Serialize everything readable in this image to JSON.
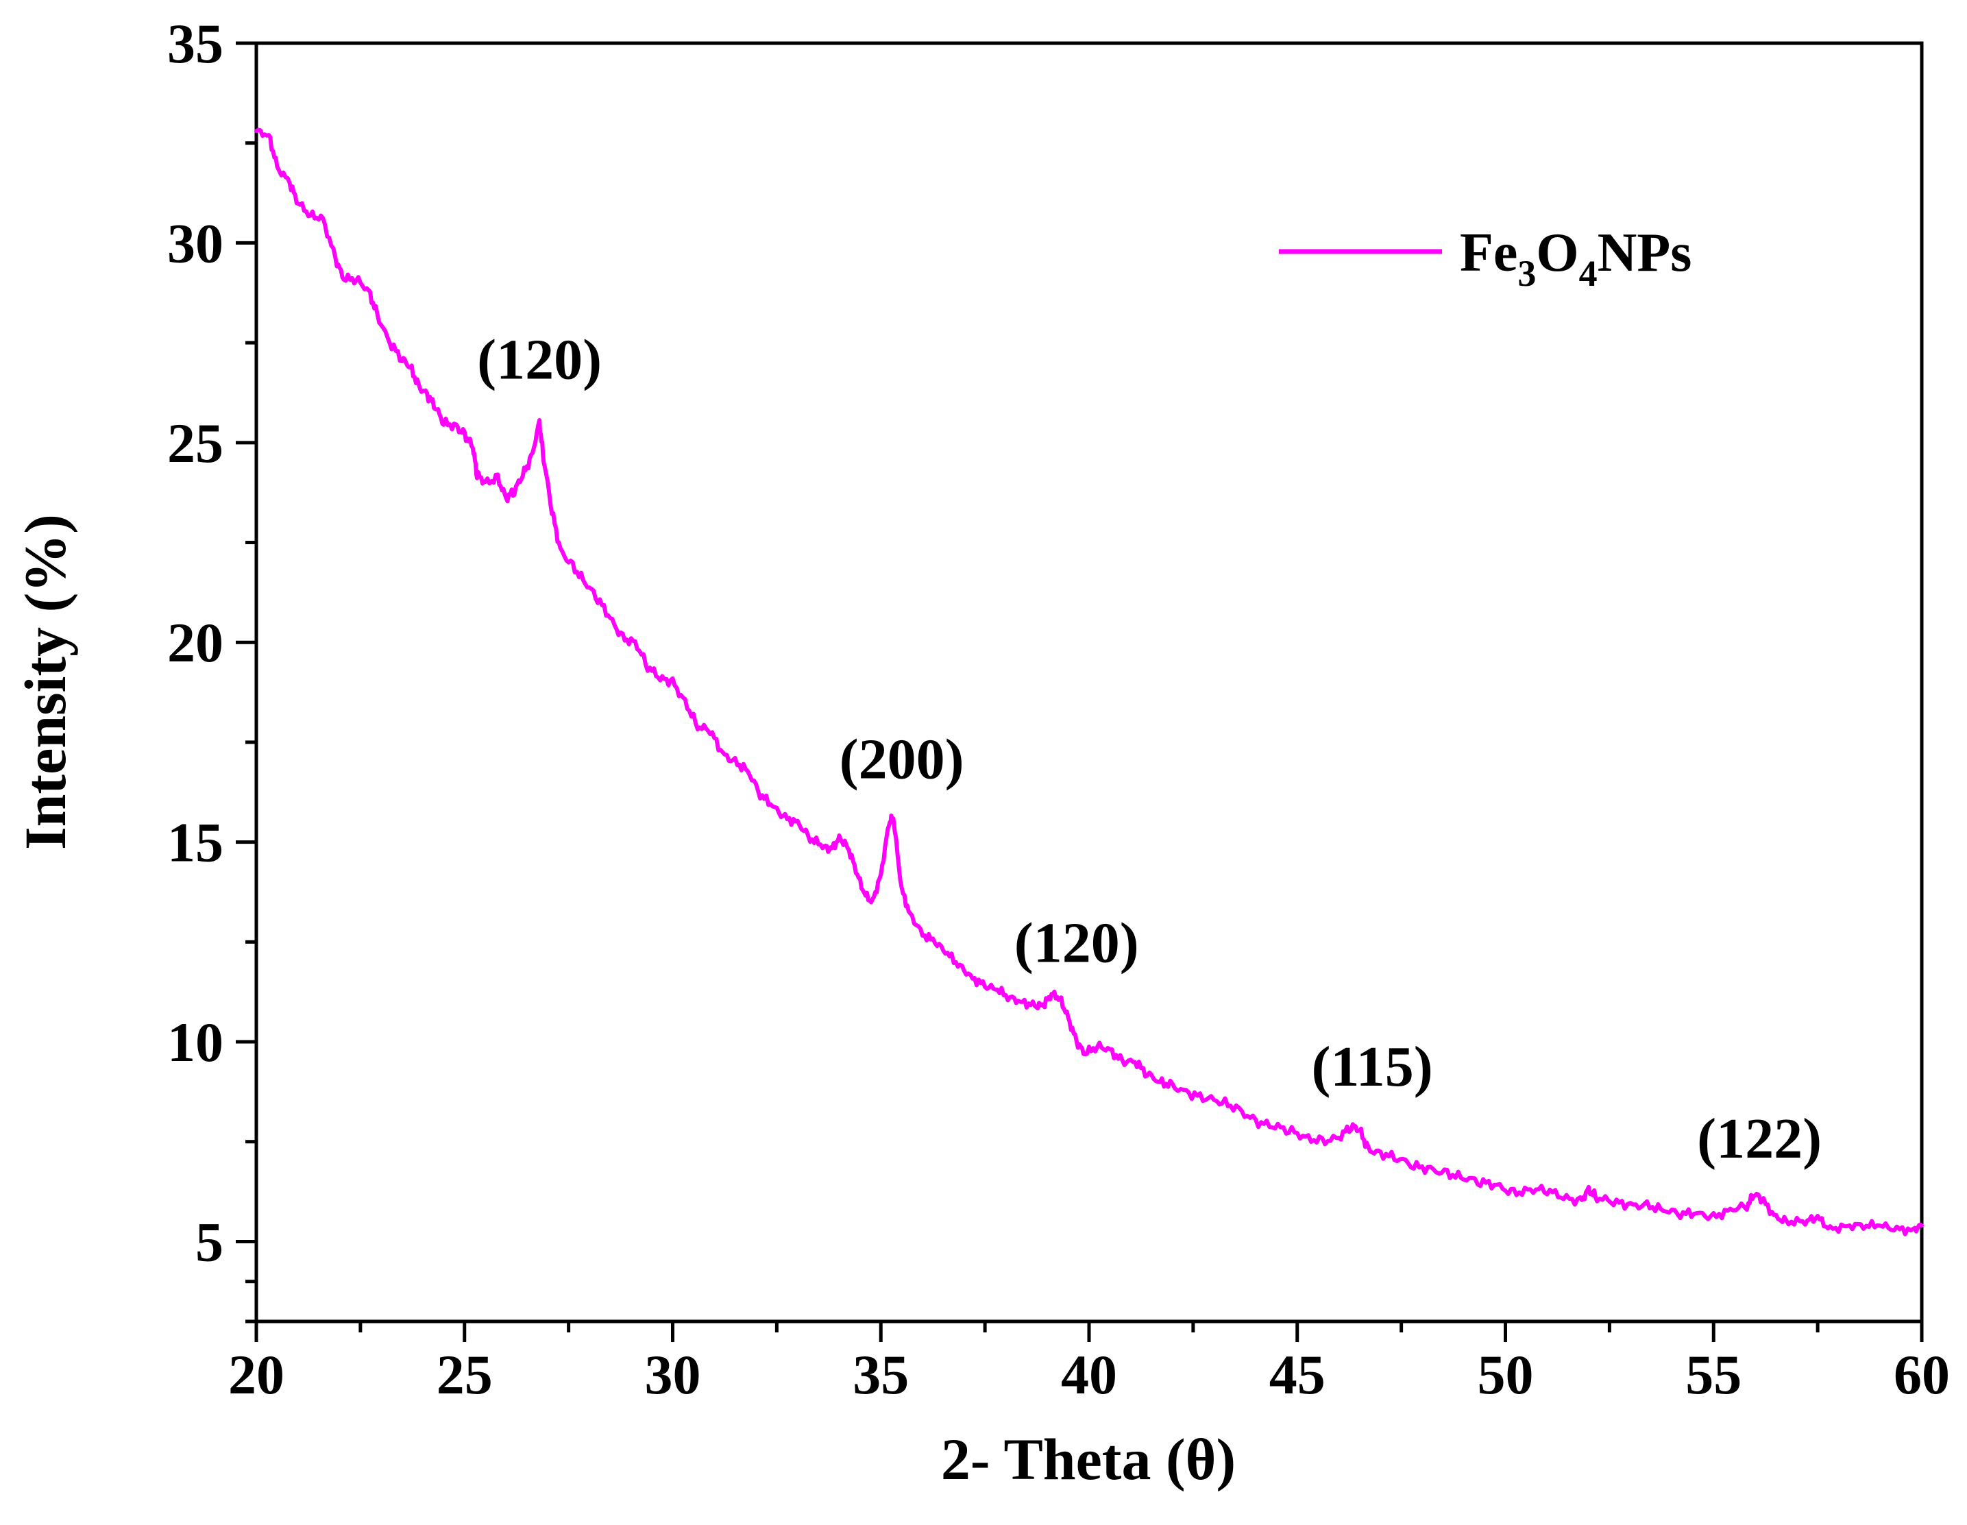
{
  "chart_data": {
    "type": "line",
    "title": "",
    "xlabel": "2- Theta (θ)",
    "ylabel": "Intensity (%)",
    "xlim": [
      20,
      60
    ],
    "ylim": [
      3,
      35
    ],
    "x_ticks": [
      20,
      25,
      30,
      35,
      40,
      45,
      50,
      55,
      60
    ],
    "y_ticks": [
      5,
      10,
      15,
      20,
      25,
      30,
      35
    ],
    "grid": false,
    "legend_position": "top-right",
    "series": [
      {
        "name": "Fe3O4NPs",
        "legend_parts": {
          "a": "Fe",
          "sub1": "3",
          "b": "O",
          "sub2": "4",
          "c": "NPs"
        },
        "color": "#ff00ff",
        "x": [
          20.0,
          20.3,
          20.5,
          20.8,
          21.0,
          21.3,
          21.6,
          21.9,
          22.1,
          22.4,
          22.7,
          22.9,
          23.2,
          23.5,
          23.7,
          23.9,
          24.1,
          24.3,
          24.5,
          24.8,
          25.0,
          25.2,
          25.3,
          25.5,
          25.8,
          26.0,
          26.2,
          26.4,
          26.6,
          26.8,
          26.9,
          27.1,
          27.3,
          27.6,
          27.9,
          28.2,
          28.5,
          28.8,
          29.1,
          29.4,
          29.7,
          30.0,
          30.3,
          30.6,
          30.9,
          31.2,
          31.5,
          31.8,
          32.1,
          32.4,
          32.7,
          33.0,
          33.3,
          33.6,
          33.8,
          34.0,
          34.2,
          34.4,
          34.6,
          34.8,
          35.0,
          35.2,
          35.3,
          35.5,
          35.7,
          36.0,
          36.3,
          36.6,
          36.9,
          37.2,
          37.5,
          37.8,
          38.1,
          38.4,
          38.7,
          38.9,
          39.1,
          39.3,
          39.5,
          39.7,
          39.9,
          40.2,
          40.5,
          40.8,
          41.1,
          41.4,
          41.7,
          42.0,
          42.4,
          42.8,
          43.2,
          43.6,
          44.0,
          44.4,
          44.8,
          45.2,
          45.6,
          46.0,
          46.3,
          46.5,
          46.7,
          47.0,
          47.4,
          47.8,
          48.2,
          48.6,
          49.0,
          49.4,
          49.8,
          50.2,
          50.6,
          51.0,
          51.4,
          51.8,
          52.0,
          52.2,
          52.6,
          53.0,
          53.4,
          53.8,
          54.2,
          54.6,
          55.0,
          55.4,
          55.8,
          56.0,
          56.2,
          56.5,
          56.8,
          57.2,
          57.5,
          57.8,
          58.2,
          58.6,
          59.0,
          59.4,
          59.8,
          60.0
        ],
        "y": [
          32.8,
          32.7,
          31.9,
          31.5,
          31.0,
          30.7,
          30.6,
          29.6,
          29.1,
          29.1,
          28.8,
          28.2,
          27.5,
          27.1,
          26.9,
          26.4,
          26.2,
          25.9,
          25.5,
          25.4,
          25.2,
          24.9,
          24.2,
          24.0,
          24.1,
          23.6,
          23.8,
          24.2,
          24.6,
          25.5,
          24.6,
          23.3,
          22.3,
          21.9,
          21.5,
          21.1,
          20.6,
          20.1,
          20.0,
          19.4,
          19.1,
          19.0,
          18.5,
          17.9,
          17.8,
          17.2,
          17.0,
          16.8,
          16.2,
          15.9,
          15.6,
          15.5,
          15.1,
          14.9,
          14.8,
          15.1,
          14.9,
          14.3,
          13.7,
          13.5,
          14.2,
          15.5,
          15.6,
          13.8,
          13.2,
          12.7,
          12.5,
          12.2,
          11.9,
          11.6,
          11.4,
          11.3,
          11.1,
          11.0,
          10.9,
          10.9,
          11.2,
          11.1,
          10.6,
          10.0,
          9.7,
          9.9,
          9.8,
          9.5,
          9.5,
          9.2,
          9.0,
          8.9,
          8.7,
          8.6,
          8.5,
          8.3,
          8.0,
          7.9,
          7.8,
          7.6,
          7.5,
          7.6,
          7.9,
          7.8,
          7.3,
          7.2,
          7.1,
          6.9,
          6.8,
          6.7,
          6.6,
          6.5,
          6.4,
          6.2,
          6.3,
          6.3,
          6.1,
          6.0,
          6.3,
          6.1,
          6.0,
          5.9,
          5.9,
          5.8,
          5.7,
          5.7,
          5.6,
          5.8,
          5.9,
          6.2,
          6.0,
          5.6,
          5.5,
          5.5,
          5.6,
          5.3,
          5.4,
          5.4,
          5.4,
          5.3,
          5.3,
          5.4
        ]
      }
    ],
    "annotations": [
      {
        "text": "(120)",
        "x": 26.8,
        "y": 26.6
      },
      {
        "text": "(200)",
        "x": 35.5,
        "y": 16.6
      },
      {
        "text": "(120)",
        "x": 39.7,
        "y": 12.0
      },
      {
        "text": "(115)",
        "x": 46.8,
        "y": 8.9
      },
      {
        "text": "(122)",
        "x": 56.1,
        "y": 7.1
      }
    ]
  }
}
